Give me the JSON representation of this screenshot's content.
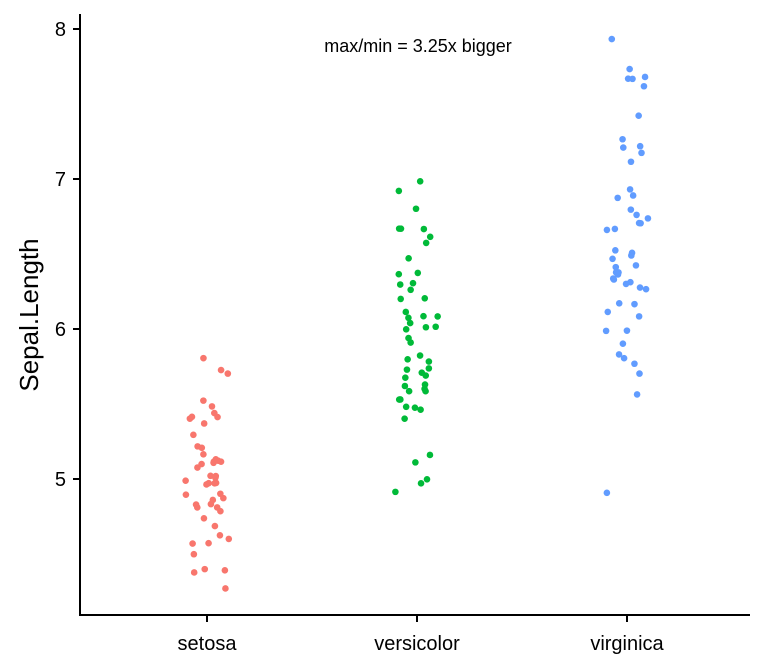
{
  "chart_data": {
    "type": "scatter",
    "subtype": "jitter strip plot",
    "title": "",
    "xlabel": "",
    "ylabel": "Sepal.Length",
    "annotation": "max/min = 3.25x bigger",
    "categories": [
      "setosa",
      "versicolor",
      "virginica"
    ],
    "ylim": [
      4.2,
      8.1
    ],
    "yticks": [
      5,
      6,
      7,
      8
    ],
    "ytick_labels": [
      "5",
      "6",
      "7",
      "8"
    ],
    "grid": false,
    "legend": "none",
    "colors": [
      "#F8766D",
      "#00BA38",
      "#619CFF"
    ],
    "series": [
      {
        "category": "setosa",
        "values": [
          5.1,
          4.9,
          4.7,
          4.6,
          5.0,
          5.4,
          4.6,
          5.0,
          4.4,
          4.9,
          5.4,
          4.8,
          4.8,
          4.3,
          5.8,
          5.7,
          5.4,
          5.1,
          5.7,
          5.1,
          5.4,
          5.1,
          4.6,
          5.1,
          4.8,
          5.0,
          5.0,
          5.2,
          5.2,
          4.7,
          4.8,
          5.4,
          5.2,
          5.5,
          4.9,
          5.0,
          5.5,
          4.9,
          4.4,
          5.1,
          5.0,
          4.5,
          4.4,
          5.0,
          5.1,
          4.8,
          5.1,
          4.6,
          5.3,
          5.0
        ]
      },
      {
        "category": "versicolor",
        "values": [
          7.0,
          6.4,
          6.9,
          5.5,
          6.5,
          5.7,
          6.3,
          4.9,
          6.6,
          5.2,
          5.0,
          5.9,
          6.0,
          6.1,
          5.6,
          6.7,
          5.6,
          5.8,
          6.2,
          5.6,
          5.9,
          6.1,
          6.3,
          6.1,
          6.4,
          6.6,
          6.8,
          6.7,
          6.0,
          5.7,
          5.5,
          5.5,
          5.8,
          6.0,
          5.4,
          6.0,
          6.7,
          6.3,
          5.6,
          5.5,
          5.5,
          6.1,
          5.8,
          5.0,
          5.6,
          5.7,
          5.7,
          6.2,
          5.1,
          5.7
        ]
      },
      {
        "category": "virginica",
        "values": [
          6.3,
          5.8,
          7.1,
          6.3,
          6.5,
          7.6,
          4.9,
          7.3,
          6.7,
          7.2,
          6.5,
          6.4,
          6.8,
          5.7,
          5.8,
          6.4,
          6.5,
          7.7,
          7.7,
          6.0,
          6.9,
          5.6,
          7.7,
          6.3,
          6.7,
          7.2,
          6.2,
          6.1,
          6.4,
          7.2,
          7.4,
          7.9,
          6.4,
          6.3,
          6.1,
          7.7,
          6.3,
          6.4,
          6.0,
          6.9,
          6.7,
          6.9,
          5.8,
          6.8,
          6.7,
          6.7,
          6.3,
          6.5,
          6.2,
          5.9
        ]
      }
    ]
  }
}
